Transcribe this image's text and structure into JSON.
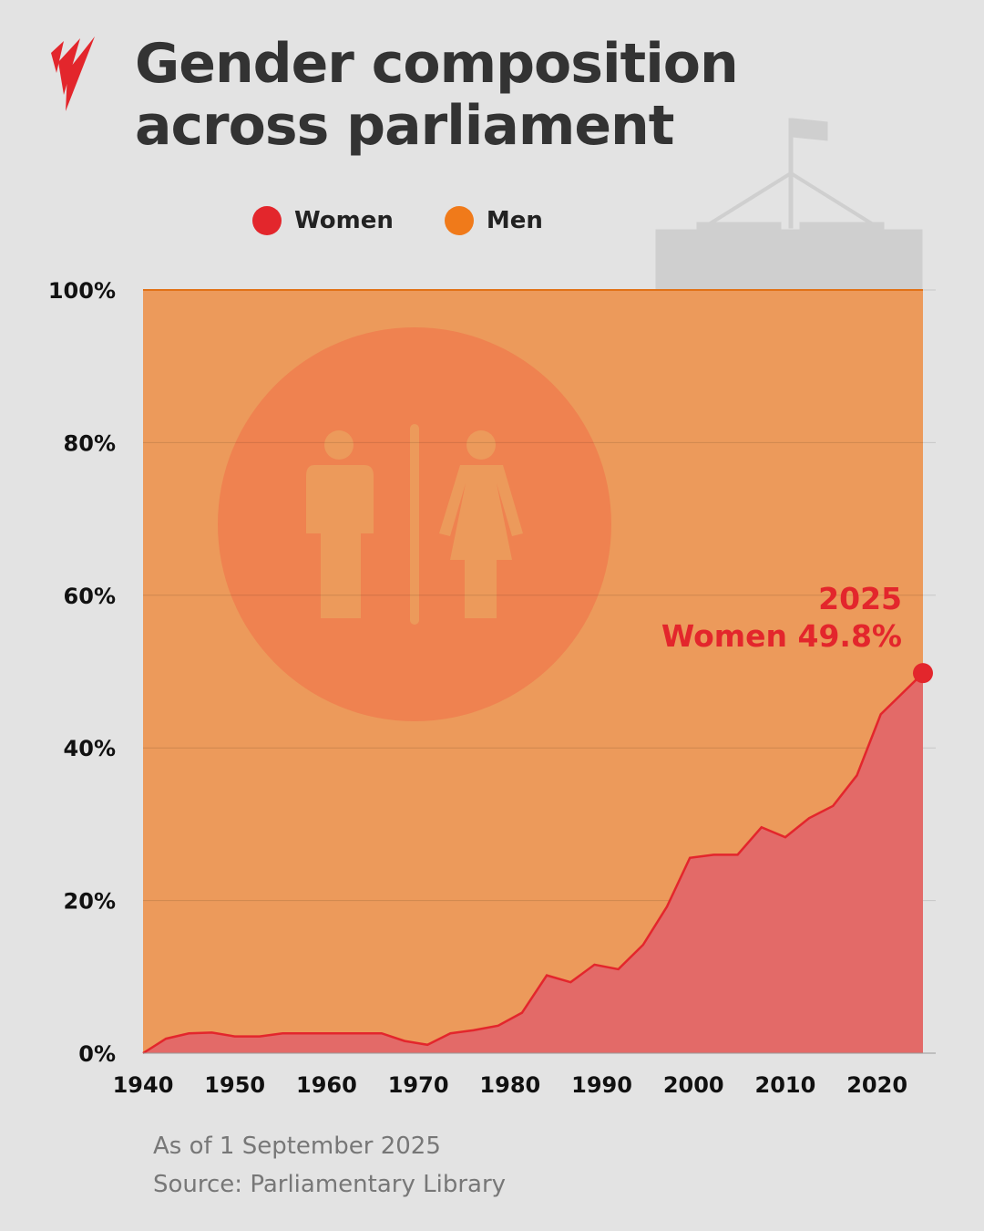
{
  "title_line1": "Gender composition",
  "title_line2": "across parliament",
  "footer": {
    "date": "As of 1 September 2025",
    "source": "Source: Parliamentary Library"
  },
  "colors": {
    "women": "#e3262c",
    "men": "#f07a1a",
    "women_fill": "#e36a68",
    "men_fill": "#ec9a5b",
    "background": "#e3e3e3"
  },
  "icons": [
    "sbs-logo",
    "parliament-house-icon",
    "restroom-man-woman-icon"
  ],
  "chart_data": {
    "type": "area",
    "title": "Gender composition across parliament",
    "legend": [
      {
        "name": "Women",
        "color": "#e3262c"
      },
      {
        "name": "Men",
        "color": "#f07a1a"
      }
    ],
    "legend_position": "top",
    "xlim": [
      1940,
      2025
    ],
    "ylim": [
      0,
      100
    ],
    "x_ticks": [
      "1940",
      "1950",
      "1960",
      "1970",
      "1980",
      "1990",
      "2000",
      "2010",
      "2020"
    ],
    "y_ticks": [
      "0%",
      "20%",
      "40%",
      "60%",
      "80%",
      "100%"
    ],
    "grid": true,
    "series": [
      {
        "name": "Women",
        "x": [
          1940,
          1942.5,
          1945,
          1947.5,
          1950,
          1952.7,
          1955.2,
          1958,
          1961,
          1963.5,
          1966,
          1968.5,
          1971,
          1973.5,
          1976,
          1978.7,
          1981.3,
          1984,
          1986.6,
          1989.2,
          1991.8,
          1994.5,
          1997.1,
          1999.6,
          2002.2,
          2004.8,
          2007.4,
          2010,
          2012.6,
          2015.2,
          2017.8,
          2020.4,
          2025
        ],
        "values": [
          0,
          1.9,
          2.6,
          2.7,
          2.2,
          2.2,
          2.6,
          2.6,
          2.6,
          2.6,
          2.6,
          1.6,
          1.1,
          2.6,
          3.0,
          3.6,
          5.3,
          10.2,
          9.3,
          11.6,
          11.0,
          14.2,
          19.2,
          25.6,
          26.0,
          26.0,
          29.6,
          28.3,
          30.8,
          32.4,
          36.4,
          44.4,
          49.8
        ]
      },
      {
        "name": "Men",
        "note_fill": "remainder to 100%"
      }
    ],
    "annotation": {
      "line1": "2025",
      "line2": "Women 49.8%"
    }
  }
}
